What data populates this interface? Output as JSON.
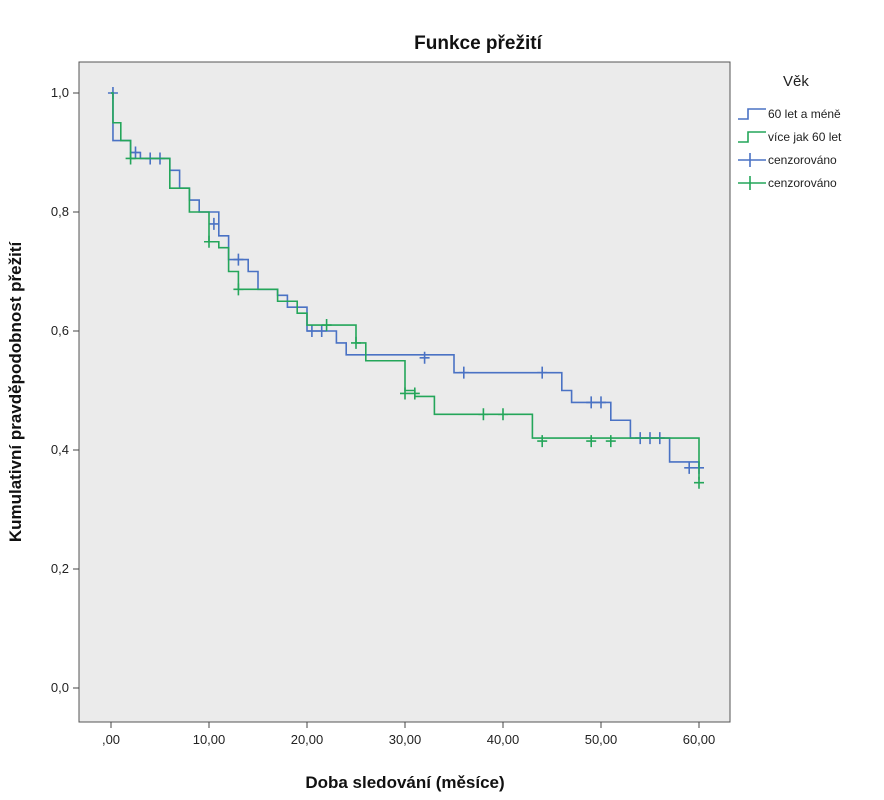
{
  "chart_data": {
    "type": "line",
    "title": "Funkce přežití",
    "xlabel": "Doba sledování (měsíce)",
    "ylabel": "Kumulativní pravděpodobnost přežití",
    "xlim": [
      0,
      60
    ],
    "ylim": [
      0,
      1
    ],
    "x_ticks": [
      0,
      10,
      20,
      30,
      40,
      50,
      60
    ],
    "x_tick_labels": [
      ",00",
      "10,00",
      "20,00",
      "30,00",
      "40,00",
      "50,00",
      "60,00"
    ],
    "y_ticks": [
      0,
      0.2,
      0.4,
      0.6,
      0.8,
      1.0
    ],
    "y_tick_labels": [
      "0,0",
      "0,2",
      "0,4",
      "0,6",
      "0,8",
      "1,0"
    ],
    "grid": false,
    "legend": {
      "title": "Věk",
      "placement": "right",
      "entries": [
        "60 let a méně",
        "více jak 60 let",
        "cenzorováno",
        "cenzorováno"
      ]
    },
    "series": [
      {
        "name": "60 let a méně",
        "color": "#4a72c4",
        "steps": [
          [
            0,
            1.0
          ],
          [
            0.2,
            0.92
          ],
          [
            2,
            0.9
          ],
          [
            3,
            0.89
          ],
          [
            6,
            0.87
          ],
          [
            7,
            0.84
          ],
          [
            8,
            0.82
          ],
          [
            9,
            0.8
          ],
          [
            11,
            0.76
          ],
          [
            12,
            0.72
          ],
          [
            14,
            0.7
          ],
          [
            15,
            0.67
          ],
          [
            17,
            0.66
          ],
          [
            18,
            0.64
          ],
          [
            20,
            0.6
          ],
          [
            22,
            0.6
          ],
          [
            23,
            0.58
          ],
          [
            24,
            0.56
          ],
          [
            35,
            0.53
          ],
          [
            46,
            0.5
          ],
          [
            47,
            0.48
          ],
          [
            51,
            0.45
          ],
          [
            53,
            0.42
          ],
          [
            57,
            0.38
          ],
          [
            60,
            0.37
          ]
        ],
        "censored": [
          [
            0.2,
            1.0
          ],
          [
            2.5,
            0.9
          ],
          [
            4,
            0.89
          ],
          [
            5,
            0.89
          ],
          [
            10.5,
            0.78
          ],
          [
            13,
            0.72
          ],
          [
            20.5,
            0.6
          ],
          [
            21.5,
            0.6
          ],
          [
            32,
            0.555
          ],
          [
            36,
            0.53
          ],
          [
            44,
            0.53
          ],
          [
            49,
            0.48
          ],
          [
            50,
            0.48
          ],
          [
            54,
            0.42
          ],
          [
            55,
            0.42
          ],
          [
            56,
            0.42
          ],
          [
            59,
            0.37
          ],
          [
            60,
            0.37
          ]
        ]
      },
      {
        "name": "více jak 60 let",
        "color": "#24a65a",
        "steps": [
          [
            0,
            1.0
          ],
          [
            0.2,
            0.95
          ],
          [
            1,
            0.92
          ],
          [
            2,
            0.89
          ],
          [
            6,
            0.84
          ],
          [
            8,
            0.8
          ],
          [
            10,
            0.75
          ],
          [
            11,
            0.74
          ],
          [
            12,
            0.7
          ],
          [
            13,
            0.67
          ],
          [
            17,
            0.65
          ],
          [
            19,
            0.63
          ],
          [
            20,
            0.61
          ],
          [
            25,
            0.58
          ],
          [
            26,
            0.55
          ],
          [
            30,
            0.5
          ],
          [
            31,
            0.49
          ],
          [
            33,
            0.46
          ],
          [
            43,
            0.42
          ],
          [
            60,
            0.35
          ]
        ],
        "censored": [
          [
            2,
            0.89
          ],
          [
            10,
            0.75
          ],
          [
            13,
            0.67
          ],
          [
            22,
            0.61
          ],
          [
            25,
            0.58
          ],
          [
            30,
            0.495
          ],
          [
            31,
            0.495
          ],
          [
            38,
            0.46
          ],
          [
            40,
            0.46
          ],
          [
            44,
            0.415
          ],
          [
            49,
            0.415
          ],
          [
            51,
            0.415
          ],
          [
            60,
            0.345
          ]
        ]
      }
    ]
  }
}
